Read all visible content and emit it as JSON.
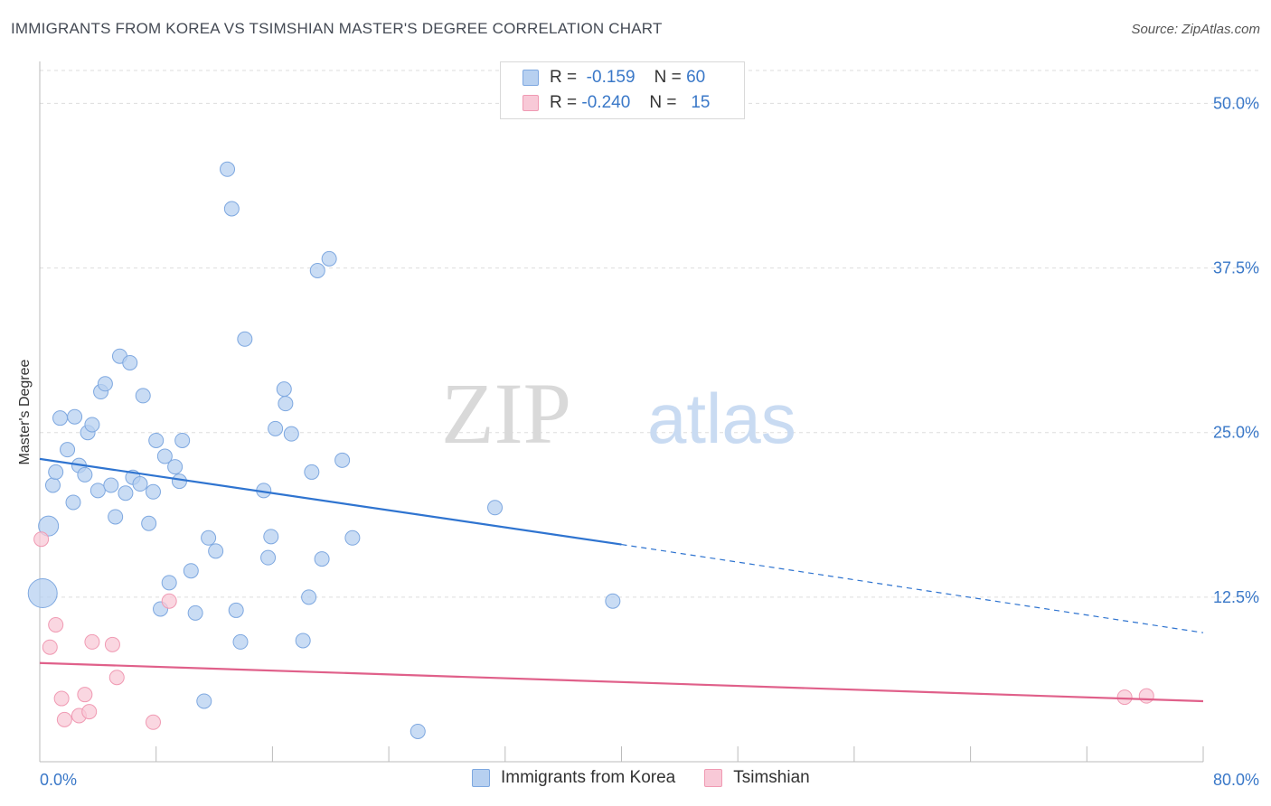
{
  "title": "IMMIGRANTS FROM KOREA VS TSIMSHIAN MASTER'S DEGREE CORRELATION CHART",
  "source": "Source: ZipAtlas.com",
  "watermark": {
    "zip": "ZIP",
    "atlas": "atlas"
  },
  "legend": {
    "r_label": "R =",
    "n_label": "N =",
    "rows": [
      {
        "r": "-0.159",
        "n": "60"
      },
      {
        "r": "-0.240",
        "n": "15"
      }
    ]
  },
  "bottom_legend": [
    "Immigrants from Korea",
    "Tsimshian"
  ],
  "colors": {
    "blue_fill": "#b7d0f0",
    "blue_stroke": "#7ea8e0",
    "blue_line": "#2f74d0",
    "pink_fill": "#f8c9d7",
    "pink_stroke": "#f09ab3",
    "pink_line": "#e0608a",
    "axis_text": "#3a78c8",
    "grid": "#dddddd"
  },
  "chart_data": {
    "type": "scatter",
    "title": "IMMIGRANTS FROM KOREA VS TSIMSHIAN MASTER'S DEGREE CORRELATION CHART",
    "xlabel": "",
    "ylabel": "Master's Degree",
    "xlim": [
      0,
      80
    ],
    "ylim": [
      0,
      52.5
    ],
    "x_tick_labels": [
      "0.0%",
      "80.0%"
    ],
    "y_ticks": [
      12.5,
      25.0,
      37.5,
      50.0
    ],
    "y_tick_labels": [
      "12.5%",
      "25.0%",
      "37.5%",
      "50.0%"
    ],
    "grid": "horizontal dashed",
    "series": [
      {
        "name": "Immigrants from Korea",
        "r": -0.159,
        "n": 60,
        "points": [
          [
            0.6,
            17.9
          ],
          [
            0.2,
            12.8
          ],
          [
            0.9,
            21.0
          ],
          [
            1.1,
            22.0
          ],
          [
            1.4,
            26.1
          ],
          [
            1.9,
            23.7
          ],
          [
            2.4,
            26.2
          ],
          [
            2.7,
            22.5
          ],
          [
            2.3,
            19.7
          ],
          [
            3.1,
            21.8
          ],
          [
            3.3,
            25.0
          ],
          [
            3.6,
            25.6
          ],
          [
            4.0,
            20.6
          ],
          [
            4.2,
            28.1
          ],
          [
            4.5,
            28.7
          ],
          [
            4.9,
            21.0
          ],
          [
            5.2,
            18.6
          ],
          [
            5.5,
            30.8
          ],
          [
            5.9,
            20.4
          ],
          [
            6.2,
            30.3
          ],
          [
            6.4,
            21.6
          ],
          [
            6.9,
            21.1
          ],
          [
            7.1,
            27.8
          ],
          [
            7.5,
            18.1
          ],
          [
            7.8,
            20.5
          ],
          [
            8.0,
            24.4
          ],
          [
            8.3,
            11.6
          ],
          [
            8.6,
            23.2
          ],
          [
            8.9,
            13.6
          ],
          [
            9.3,
            22.4
          ],
          [
            9.6,
            21.3
          ],
          [
            9.8,
            24.4
          ],
          [
            10.4,
            14.5
          ],
          [
            10.7,
            11.3
          ],
          [
            11.3,
            4.6
          ],
          [
            11.6,
            17.0
          ],
          [
            12.1,
            16.0
          ],
          [
            12.9,
            45.0
          ],
          [
            13.2,
            42.0
          ],
          [
            13.5,
            11.5
          ],
          [
            13.8,
            9.1
          ],
          [
            14.1,
            32.1
          ],
          [
            15.4,
            20.6
          ],
          [
            15.7,
            15.5
          ],
          [
            15.9,
            17.1
          ],
          [
            16.2,
            25.3
          ],
          [
            16.8,
            28.3
          ],
          [
            16.9,
            27.2
          ],
          [
            17.3,
            24.9
          ],
          [
            18.1,
            9.2
          ],
          [
            18.5,
            12.5
          ],
          [
            18.7,
            22.0
          ],
          [
            19.1,
            37.3
          ],
          [
            19.4,
            15.4
          ],
          [
            19.9,
            38.2
          ],
          [
            20.8,
            22.9
          ],
          [
            21.5,
            17.0
          ],
          [
            26.0,
            2.3
          ],
          [
            31.3,
            19.3
          ],
          [
            39.4,
            12.2
          ]
        ]
      },
      {
        "name": "Tsimshian",
        "r": -0.24,
        "n": 15,
        "points": [
          [
            0.1,
            16.9
          ],
          [
            0.7,
            8.7
          ],
          [
            1.1,
            10.4
          ],
          [
            1.5,
            4.8
          ],
          [
            1.7,
            3.2
          ],
          [
            2.7,
            3.5
          ],
          [
            3.1,
            5.1
          ],
          [
            3.4,
            3.8
          ],
          [
            3.6,
            9.1
          ],
          [
            5.0,
            8.9
          ],
          [
            5.3,
            6.4
          ],
          [
            7.8,
            3.0
          ],
          [
            8.9,
            12.2
          ],
          [
            74.6,
            4.9
          ],
          [
            76.1,
            5.0
          ]
        ]
      }
    ],
    "trend_lines": [
      {
        "series": "Immigrants from Korea",
        "start": [
          0,
          23.0
        ],
        "solid_end": [
          40,
          16.5
        ],
        "dashed_end": [
          80,
          9.8
        ]
      },
      {
        "series": "Tsimshian",
        "start": [
          0,
          7.5
        ],
        "end": [
          80,
          4.6
        ]
      }
    ]
  }
}
